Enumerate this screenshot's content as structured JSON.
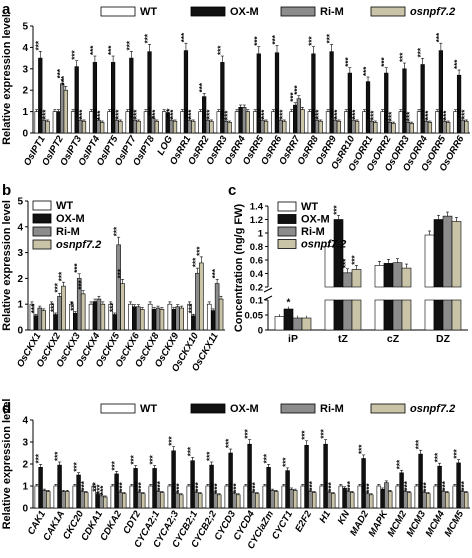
{
  "figure": {
    "panel_labels": [
      "a",
      "b",
      "c",
      "d"
    ],
    "significance_marker": "***",
    "significance_marker_single": "*"
  },
  "legend_items": [
    {
      "label": "WT",
      "color": "#ffffff"
    },
    {
      "label": "OX-M",
      "color": "#111111"
    },
    {
      "label": "Ri-M",
      "color": "#8c8c8c"
    },
    {
      "label": "osnpf7.2",
      "color": "#c9c3a8"
    }
  ],
  "chart_data": [
    {
      "panel": "a",
      "type": "bar",
      "ylabel": "Relative expression level",
      "ylim": [
        0,
        5
      ],
      "yticks": [
        0,
        1,
        2,
        3,
        4,
        5
      ],
      "legend_position": "top",
      "categories": [
        "OsIPT1",
        "OsIPT2",
        "OsIPT3",
        "OsIPT4",
        "OsIPT5",
        "OsIPT7",
        "OsIPT8",
        "LOG",
        "OsRR1",
        "OsRR2",
        "OsRR3",
        "OsRR4",
        "OsRR5",
        "OsRR6",
        "OsRR7",
        "OsRR8",
        "OsRR9",
        "OsRR10",
        "OsORR1",
        "OsORR2",
        "OsORR3",
        "OsORR4",
        "OsORR5",
        "OsORR6"
      ],
      "series": [
        {
          "name": "WT",
          "values": [
            1,
            1,
            1,
            1,
            1,
            1,
            1,
            1,
            1,
            1,
            1,
            1,
            1,
            1,
            1,
            1,
            1,
            1,
            1,
            1,
            1,
            1,
            1,
            1
          ]
        },
        {
          "name": "OX-M",
          "values": [
            3.5,
            1.0,
            3.1,
            3.3,
            3.3,
            3.5,
            3.8,
            0.95,
            3.85,
            1.7,
            3.3,
            1.2,
            3.7,
            3.75,
            1.3,
            3.7,
            3.8,
            2.8,
            2.4,
            2.8,
            3.0,
            3.2,
            3.85,
            2.7
          ]
        },
        {
          "name": "Ri-M",
          "values": [
            0.6,
            2.3,
            0.6,
            0.6,
            0.6,
            0.6,
            0.7,
            0.6,
            0.6,
            0.6,
            0.55,
            1.2,
            0.6,
            0.6,
            1.6,
            0.6,
            0.6,
            0.6,
            0.55,
            0.5,
            0.5,
            0.55,
            0.55,
            0.6
          ]
        },
        {
          "name": "osnpf7.2",
          "values": [
            0.55,
            2.0,
            0.55,
            0.5,
            0.55,
            0.55,
            0.55,
            0.55,
            0.55,
            0.55,
            0.5,
            1.0,
            0.55,
            0.55,
            1.1,
            0.55,
            0.55,
            0.55,
            0.5,
            0.45,
            0.45,
            0.5,
            0.5,
            0.55
          ]
        }
      ]
    },
    {
      "panel": "b",
      "type": "bar",
      "ylabel": "Relative expression level",
      "ylim": [
        0,
        5
      ],
      "yticks": [
        0,
        1,
        2,
        3,
        4,
        5
      ],
      "legend_position": "top-left",
      "categories": [
        "OsCKX1",
        "OsCKX2",
        "OsCKX3",
        "OsCKX4",
        "OsCKX5",
        "OsCKX6",
        "OsCKX8",
        "OsCKX9",
        "OsCKX10",
        "OsCKX11"
      ],
      "series": [
        {
          "name": "WT",
          "values": [
            1,
            1,
            1,
            1,
            1,
            1,
            1,
            1,
            1,
            1
          ]
        },
        {
          "name": "OX-M",
          "values": [
            0.55,
            0.6,
            0.65,
            1.1,
            0.6,
            0.9,
            0.8,
            0.8,
            0.55,
            0.75
          ]
        },
        {
          "name": "Ri-M",
          "values": [
            0.85,
            1.3,
            2.0,
            1.2,
            3.3,
            0.9,
            0.85,
            0.9,
            2.2,
            1.8
          ]
        },
        {
          "name": "osnpf7.2",
          "values": [
            0.75,
            1.7,
            1.4,
            1.0,
            1.8,
            0.8,
            0.8,
            0.85,
            2.6,
            1.2
          ]
        }
      ]
    },
    {
      "panel": "c",
      "type": "bar",
      "ylabel": "Concentration (ng/g FW)",
      "y_axis_break": true,
      "yticks_lower": [
        0,
        0.05,
        0.1
      ],
      "yticks_upper": [
        0.2,
        0.4,
        0.6,
        0.8,
        1.0,
        1.2,
        1.4
      ],
      "legend_position": "top-left",
      "categories": [
        "iP",
        "tZ",
        "cZ",
        "DZ"
      ],
      "series": [
        {
          "name": "WT",
          "values": [
            0.045,
            0.8,
            0.52,
            0.97
          ]
        },
        {
          "name": "OX-M",
          "values": [
            0.07,
            1.2,
            0.55,
            1.2
          ]
        },
        {
          "name": "Ri-M",
          "values": [
            0.04,
            0.41,
            0.56,
            1.25
          ]
        },
        {
          "name": "osnpf7.2",
          "values": [
            0.04,
            0.46,
            0.48,
            1.17
          ]
        }
      ]
    },
    {
      "panel": "d",
      "type": "bar",
      "ylabel": "Relative expression level",
      "ylim": [
        0,
        4
      ],
      "yticks": [
        0,
        1,
        2,
        3,
        4
      ],
      "legend_position": "top",
      "categories": [
        "CAK1",
        "CAK1A",
        "CKC20",
        "CDKA1",
        "CDKA2",
        "CDT2",
        "CYCA2;1",
        "CYCA2;3",
        "CYCB2;1",
        "CYCB2;2",
        "CYCD3",
        "CYCD4",
        "CYClaZm",
        "CYCT1",
        "E2F2",
        "H1",
        "KN",
        "MAD2",
        "MAPK",
        "MCM2",
        "MCM3",
        "MCM4",
        "MCM5"
      ],
      "series": [
        {
          "name": "WT",
          "values": [
            1,
            1,
            1,
            1,
            1,
            1,
            1,
            1,
            1,
            1,
            1,
            1,
            1,
            1,
            1,
            1,
            1,
            1,
            1,
            1,
            1,
            1,
            1
          ]
        },
        {
          "name": "OX-M",
          "values": [
            1.85,
            1.95,
            1.5,
            0.65,
            1.55,
            1.8,
            1.8,
            2.6,
            2.15,
            1.95,
            2.5,
            2.9,
            1.85,
            1.7,
            2.85,
            2.9,
            0.9,
            2.25,
            0.85,
            1.6,
            2.45,
            1.9,
            2.05
          ]
        },
        {
          "name": "Ri-M",
          "values": [
            0.8,
            0.75,
            0.75,
            0.55,
            0.7,
            0.7,
            0.75,
            0.65,
            0.7,
            0.65,
            0.65,
            0.7,
            0.8,
            0.85,
            0.75,
            0.7,
            0.75,
            0.65,
            1.15,
            0.75,
            0.7,
            0.75,
            0.75
          ]
        },
        {
          "name": "osnpf7.2",
          "values": [
            0.75,
            0.75,
            0.7,
            0.5,
            0.65,
            0.65,
            0.7,
            0.6,
            0.65,
            0.6,
            0.6,
            0.65,
            0.75,
            0.8,
            0.7,
            0.65,
            0.7,
            0.6,
            0.75,
            0.7,
            0.65,
            0.7,
            0.7
          ]
        }
      ]
    }
  ]
}
